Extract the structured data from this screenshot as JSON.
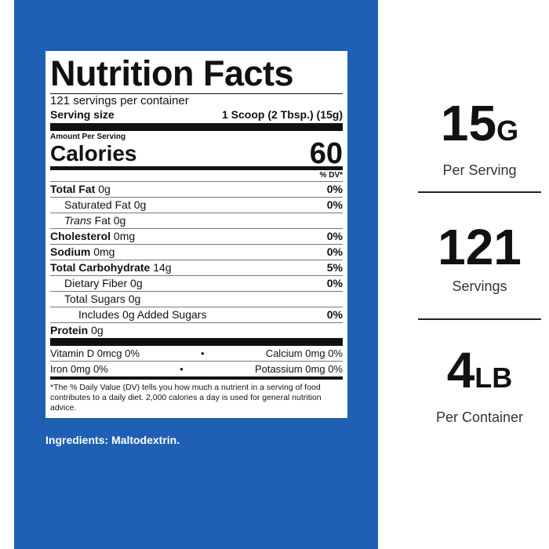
{
  "label": {
    "title": "Nutrition Facts",
    "servings": "121 servings per container",
    "serving_size_label": "Serving size",
    "serving_size": "1 Scoop (2 Tbsp.) (15g)",
    "amount_per_serving": "Amount Per Serving",
    "calories_label": "Calories",
    "calories": "60",
    "dv_header": "% DV*",
    "rows": [
      {
        "name": "Total Fat",
        "amount": "0g",
        "dv": "0%",
        "bold": true,
        "indent": 0
      },
      {
        "name": "Saturated Fat",
        "amount": "0g",
        "dv": "0%",
        "bold": false,
        "indent": 1
      },
      {
        "name_italic": "Trans",
        "name": "Fat",
        "amount": "0g",
        "bold": false,
        "indent": 1
      },
      {
        "name": "Cholesterol",
        "amount": "0mg",
        "dv": "0%",
        "bold": true,
        "indent": 0
      },
      {
        "name": "Sodium",
        "amount": "0mg",
        "dv": "0%",
        "bold": true,
        "indent": 0
      },
      {
        "name": "Total Carbohydrate",
        "amount": "14g",
        "dv": "5%",
        "bold": true,
        "indent": 0
      },
      {
        "name": "Dietary Fiber",
        "amount": "0g",
        "dv": "0%",
        "bold": false,
        "indent": 1
      },
      {
        "name": "Total Sugars",
        "amount": "0g",
        "bold": false,
        "indent": 1
      },
      {
        "name": "Includes 0g Added Sugars",
        "dv": "0%",
        "bold": false,
        "indent": 2
      },
      {
        "name": "Protein",
        "amount": "0g",
        "bold": true,
        "indent": 0
      }
    ],
    "vitamins": [
      [
        {
          "name": "Vitamin D",
          "amount": "0mcg",
          "dv": "0%"
        },
        {
          "name": "Calcium",
          "amount": "0mg",
          "dv": "0%"
        }
      ],
      [
        {
          "name": "Iron",
          "amount": "0mg",
          "dv": "0%"
        },
        {
          "name": "Potassium",
          "amount": "0mg",
          "dv": "0%"
        }
      ]
    ],
    "footnote": "*The % Daily Value (DV) tells you how much a nutrient in a serving of food contributes to a daily diet. 2,000 calories a day is used for general nutrition advice."
  },
  "ingredients": "Ingredients: Maltodextrin.",
  "stats": [
    {
      "value": "15",
      "unit": "G",
      "caption": "Per Serving"
    },
    {
      "value": "121",
      "caption": "Servings"
    },
    {
      "value": "4",
      "unit": "LB",
      "caption": "Per Container"
    }
  ]
}
